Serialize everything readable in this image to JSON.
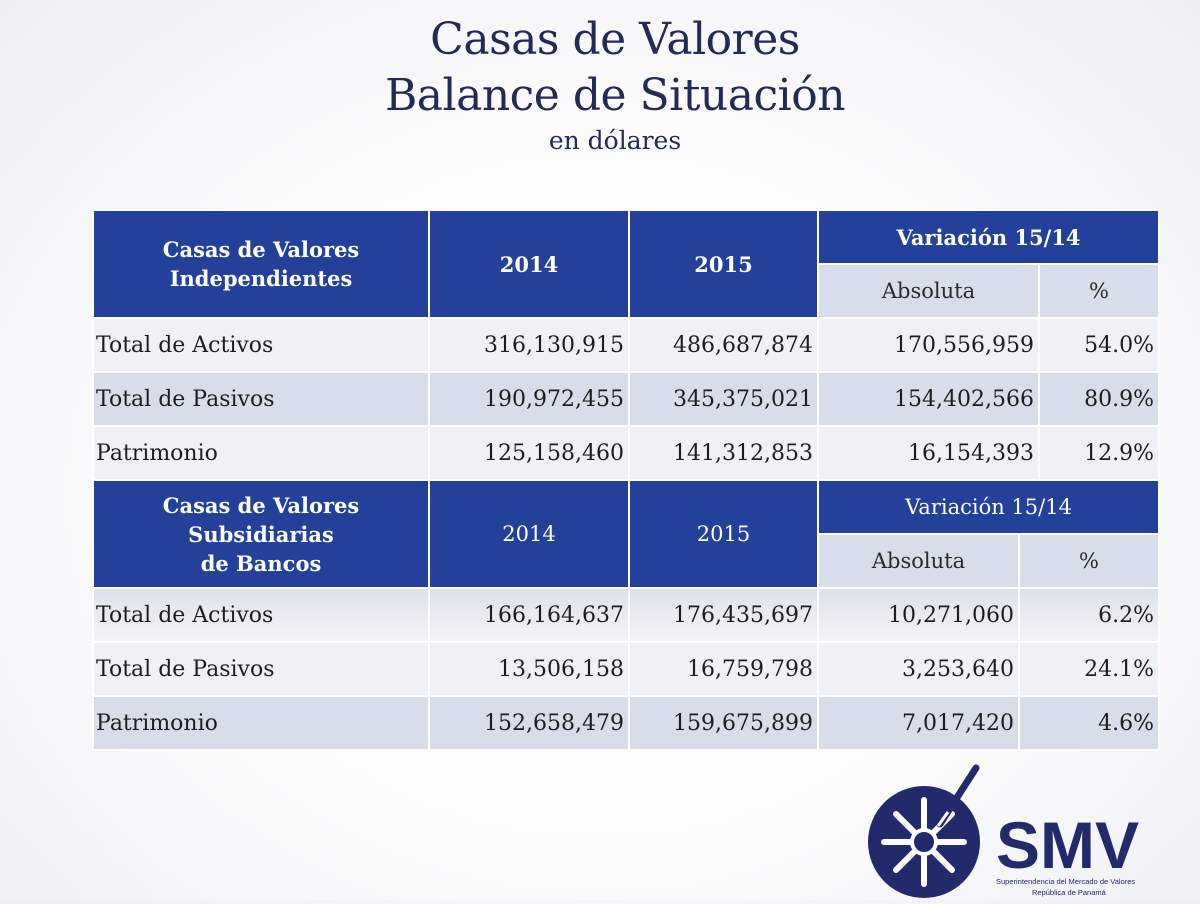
{
  "header": {
    "title_line1": "Casas de Valores",
    "title_line2": "Balance de Situación",
    "subtitle": "en dólares"
  },
  "tables": [
    {
      "group_label": "Casas de Valores Independientes",
      "col_2014": "2014",
      "col_2015": "2015",
      "variation_label": "Variación 15/14",
      "absolute_label": "Absoluta",
      "percent_label": "%",
      "rows": [
        {
          "label": "Total de Activos",
          "v2014": "316,130,915",
          "v2015": "486,687,874",
          "abs": "170,556,959",
          "pct": "54.0%"
        },
        {
          "label": "Total de Pasivos",
          "v2014": "190,972,455",
          "v2015": "345,375,021",
          "abs": "154,402,566",
          "pct": "80.9%"
        },
        {
          "label": "Patrimonio",
          "v2014": "125,158,460",
          "v2015": "141,312,853",
          "abs": "16,154,393",
          "pct": "12.9%"
        }
      ]
    },
    {
      "group_label_line1": "Casas de Valores Subsidiarias",
      "group_label_line2": "de Bancos",
      "col_2014": "2014",
      "col_2015": "2015",
      "variation_label": "Variación 15/14",
      "absolute_label": "Absoluta",
      "percent_label": "%",
      "rows": [
        {
          "label": "Total de Activos",
          "v2014": "166,164,637",
          "v2015": "176,435,697",
          "abs": "10,271,060",
          "pct": "6.2%"
        },
        {
          "label": "Total de Pasivos",
          "v2014": "13,506,158",
          "v2015": "16,759,798",
          "abs": "3,253,640",
          "pct": "24.1%"
        },
        {
          "label": "Patrimonio",
          "v2014": "152,658,479",
          "v2015": "159,675,899",
          "abs": "7,017,420",
          "pct": "4.6%"
        }
      ]
    }
  ],
  "logo": {
    "text": "SMV",
    "caption_line1": "Superintendencia del Mercado de Valores",
    "caption_line2": "República de Panamá",
    "color": "#232a6b"
  }
}
